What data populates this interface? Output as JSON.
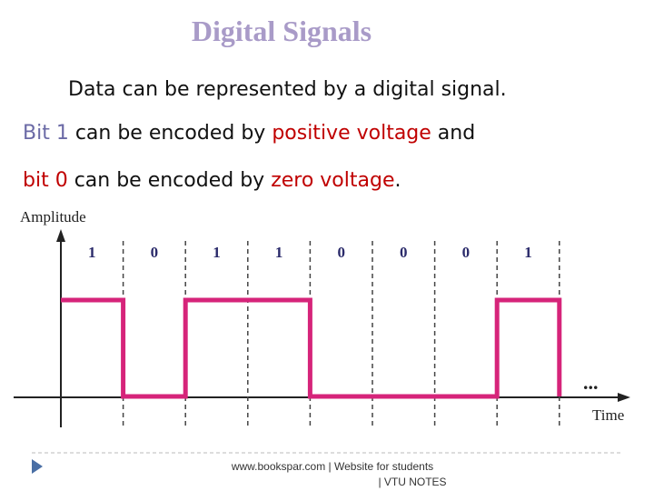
{
  "header": {
    "title": "Digital Signals"
  },
  "body": {
    "lines": [
      [
        {
          "text": "Data can be represented by a digital signal.",
          "color": "#111111"
        }
      ],
      [
        {
          "text": "Bit 1",
          "color": "#6b6aa6"
        },
        {
          "text": " can be encoded by ",
          "color": "#111111"
        },
        {
          "text": "positive voltage",
          "color": "#c00000"
        },
        {
          "text": " and",
          "color": "#111111"
        }
      ],
      [
        {
          "text": "bit 0",
          "color": "#c00000"
        },
        {
          "text": " can be encoded by ",
          "color": "#111111"
        },
        {
          "text": "zero voltage",
          "color": "#c00000"
        },
        {
          "text": ".",
          "color": "#111111"
        }
      ]
    ]
  },
  "diagram": {
    "y_axis_label": "Amplitude",
    "x_axis_label": "Time",
    "bits": [
      "1",
      "0",
      "1",
      "1",
      "0",
      "0",
      "0",
      "1"
    ],
    "continuation": "...",
    "signal_color": "#d6247a"
  },
  "footer": {
    "lines": [
      "www.bookspar.com | Website for students",
      "| VTU NOTES"
    ]
  }
}
